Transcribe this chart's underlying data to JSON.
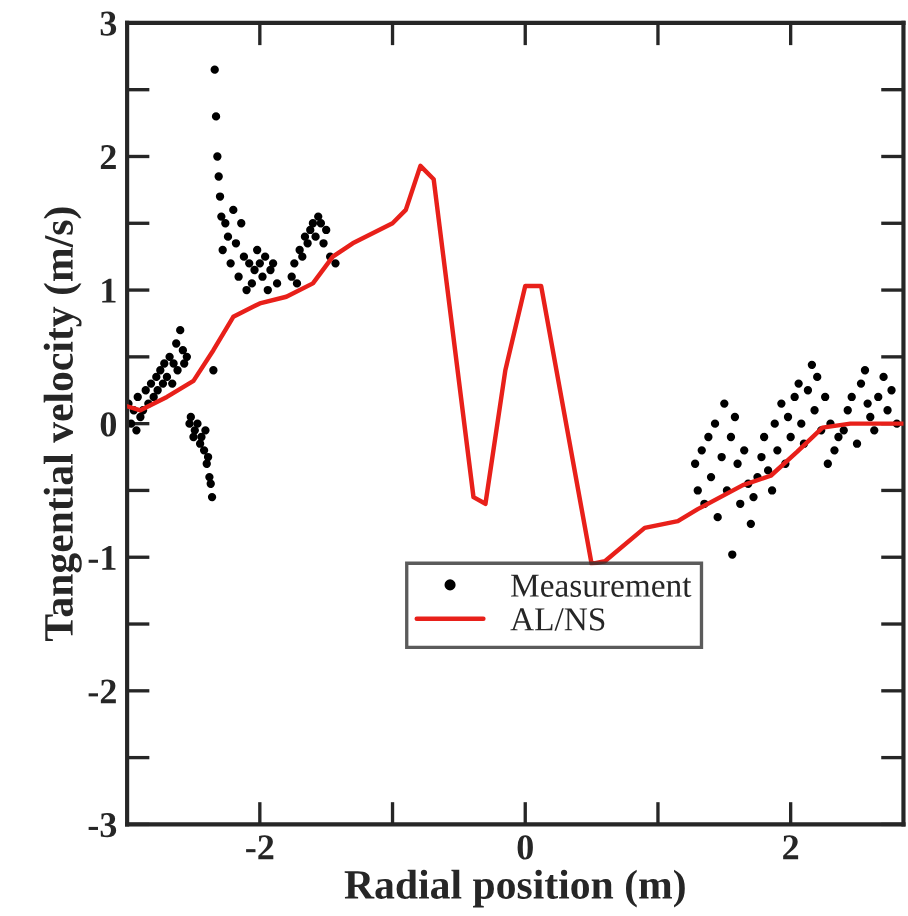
{
  "chart_data": {
    "type": "scatter",
    "xlabel": "Radial position (m)",
    "ylabel": "Tangential velocity (m/s)",
    "xlim": [
      -3.0,
      2.85
    ],
    "ylim": [
      -3,
      3
    ],
    "xticks": [
      -2,
      {
        "value": -1,
        "label": null
      },
      0,
      {
        "value": 1,
        "label": null
      },
      2
    ],
    "yticks": [
      -3,
      {
        "value": -2.5,
        "label": null
      },
      -2,
      {
        "value": -1.5,
        "label": null
      },
      -1,
      {
        "value": -0.5,
        "label": null
      },
      0,
      {
        "value": 0.5,
        "label": null
      },
      1,
      {
        "value": 1.5,
        "label": null
      },
      2,
      {
        "value": 2.5,
        "label": null
      },
      3
    ],
    "grid": false,
    "legend": "bottom",
    "series": [
      {
        "name": "Measurement",
        "color": "#000000",
        "marker": "circle",
        "x": [
          -2.99,
          -2.97,
          -2.95,
          -2.93,
          -2.92,
          -2.9,
          -2.88,
          -2.86,
          -2.84,
          -2.82,
          -2.8,
          -2.78,
          -2.77,
          -2.75,
          -2.73,
          -2.72,
          -2.7,
          -2.68,
          -2.66,
          -2.65,
          -2.63,
          -2.62,
          -2.6,
          -2.58,
          -2.57,
          -2.55,
          -2.53,
          -2.52,
          -2.5,
          -2.49,
          -2.47,
          -2.45,
          -2.44,
          -2.42,
          -2.41,
          -2.4,
          -2.39,
          -2.38,
          -2.37,
          -2.36,
          -2.35,
          -2.34,
          -2.33,
          -2.32,
          -2.31,
          -2.3,
          -2.29,
          -2.28,
          -2.26,
          -2.24,
          -2.22,
          -2.2,
          -2.18,
          -2.16,
          -2.14,
          -2.12,
          -2.1,
          -2.08,
          -2.06,
          -2.04,
          -2.02,
          -2.0,
          -1.98,
          -1.96,
          -1.94,
          -1.92,
          -1.9,
          -1.87,
          -1.76,
          -1.74,
          -1.72,
          -1.7,
          -1.68,
          -1.66,
          -1.64,
          -1.62,
          -1.6,
          -1.58,
          -1.56,
          -1.54,
          -1.52,
          -1.5,
          -1.47,
          -1.43,
          1.28,
          1.3,
          1.33,
          1.35,
          1.38,
          1.4,
          1.43,
          1.45,
          1.48,
          1.5,
          1.52,
          1.55,
          1.56,
          1.58,
          1.6,
          1.62,
          1.65,
          1.68,
          1.7,
          1.72,
          1.75,
          1.78,
          1.8,
          1.83,
          1.86,
          1.88,
          1.9,
          1.93,
          1.96,
          1.98,
          2.0,
          2.03,
          2.06,
          2.08,
          2.1,
          2.13,
          2.16,
          2.18,
          2.2,
          2.23,
          2.26,
          2.28,
          2.3,
          2.33,
          2.36,
          2.4,
          2.43,
          2.46,
          2.5,
          2.53,
          2.56,
          2.58,
          2.6,
          2.63,
          2.66,
          2.7,
          2.73,
          2.76,
          2.8
        ],
        "values": [
          0.15,
          0.0,
          0.1,
          -0.05,
          0.2,
          0.05,
          0.1,
          0.25,
          0.15,
          0.3,
          0.2,
          0.35,
          0.25,
          0.4,
          0.3,
          0.45,
          0.35,
          0.5,
          0.3,
          0.45,
          0.6,
          0.4,
          0.7,
          0.55,
          0.45,
          0.5,
          0.0,
          0.05,
          -0.1,
          -0.05,
          0.0,
          -0.15,
          -0.1,
          -0.2,
          -0.05,
          -0.3,
          -0.25,
          -0.4,
          -0.45,
          -0.55,
          0.4,
          2.65,
          2.3,
          2.0,
          1.85,
          1.7,
          1.55,
          1.3,
          1.5,
          1.4,
          1.2,
          1.6,
          1.35,
          1.1,
          1.5,
          1.25,
          1.0,
          1.2,
          1.05,
          1.15,
          1.3,
          1.2,
          1.1,
          1.25,
          1.0,
          1.15,
          1.2,
          1.05,
          1.1,
          1.2,
          1.05,
          1.3,
          1.25,
          1.4,
          1.35,
          1.45,
          1.5,
          1.4,
          1.55,
          1.5,
          1.35,
          1.45,
          1.25,
          1.2,
          -0.3,
          -0.5,
          -0.2,
          -0.6,
          -0.1,
          -0.4,
          0.0,
          -0.7,
          -0.25,
          0.15,
          -0.5,
          -0.1,
          -0.98,
          0.05,
          -0.3,
          -0.6,
          -0.2,
          -0.45,
          -0.75,
          -0.55,
          -0.4,
          -0.25,
          -0.1,
          -0.35,
          -0.5,
          0.0,
          -0.2,
          0.15,
          -0.3,
          0.05,
          -0.1,
          0.2,
          0.3,
          0.0,
          -0.15,
          0.25,
          0.44,
          0.1,
          0.35,
          -0.05,
          0.2,
          -0.3,
          0.0,
          -0.2,
          -0.1,
          -0.05,
          0.1,
          0.2,
          -0.15,
          0.3,
          0.4,
          0.15,
          0.05,
          -0.05,
          0.2,
          0.35,
          0.1,
          0.25,
          0.0
        ]
      },
      {
        "name": "AL/NS",
        "type": "line",
        "color": "#e8201a",
        "marker": "none",
        "line_style": "solid",
        "x": [
          -3.0,
          -2.9,
          -2.7,
          -2.5,
          -2.35,
          -2.2,
          -2.0,
          -1.8,
          -1.6,
          -1.45,
          -1.3,
          -1.0,
          -0.9,
          -0.79,
          -0.69,
          -0.39,
          -0.3,
          -0.15,
          0.0,
          0.12,
          0.5,
          0.6,
          0.9,
          1.15,
          1.3,
          1.64,
          1.85,
          2.05,
          2.24,
          2.45,
          2.85
        ],
        "values": [
          0.13,
          0.1,
          0.2,
          0.32,
          0.55,
          0.8,
          0.9,
          0.95,
          1.05,
          1.25,
          1.35,
          1.5,
          1.6,
          1.93,
          1.83,
          -0.55,
          -0.6,
          0.4,
          1.03,
          1.03,
          -1.05,
          -1.03,
          -0.78,
          -0.73,
          -0.64,
          -0.46,
          -0.39,
          -0.21,
          -0.03,
          0.0,
          0.0
        ]
      }
    ]
  }
}
